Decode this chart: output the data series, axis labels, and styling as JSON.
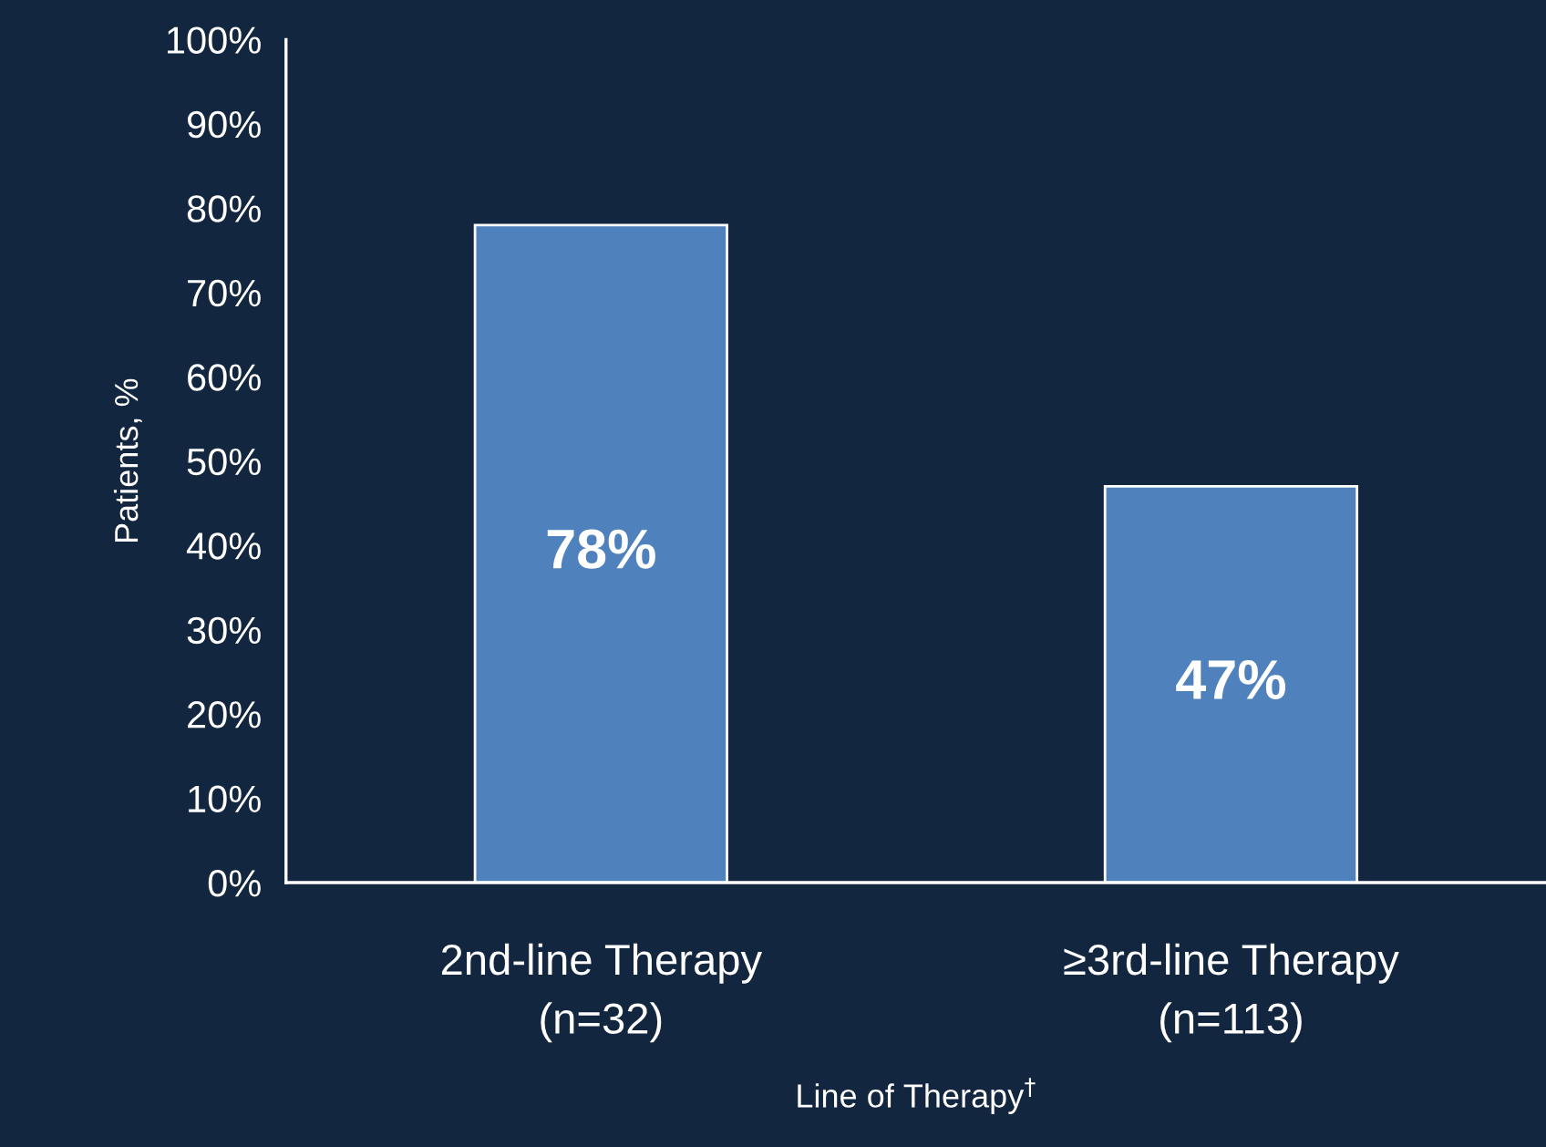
{
  "chart_data": {
    "type": "bar",
    "categories": [
      "2nd-line Therapy\n(n=32)",
      "≥3rd-line Therapy\n(n=113)"
    ],
    "values": [
      78,
      47
    ],
    "value_labels": [
      "78%",
      "47%"
    ],
    "color": "#4f81bd",
    "xlabel": "Line of Therapy$^{†}$",
    "ylabel": "Patients, %",
    "ylim": [
      0,
      100
    ],
    "yticks": [
      {
        "value": 0,
        "label": "0%"
      },
      {
        "value": 10,
        "label": "10%"
      },
      {
        "value": 20,
        "label": "20%"
      },
      {
        "value": 30,
        "label": "30%"
      },
      {
        "value": 40,
        "label": "40%"
      },
      {
        "value": 50,
        "label": "50%"
      },
      {
        "value": 60,
        "label": "60%"
      },
      {
        "value": 70,
        "label": "70%"
      },
      {
        "value": 80,
        "label": "80%"
      },
      {
        "value": 90,
        "label": "90%"
      },
      {
        "value": 100,
        "label": "100%"
      }
    ],
    "grid": false,
    "legend": false
  }
}
